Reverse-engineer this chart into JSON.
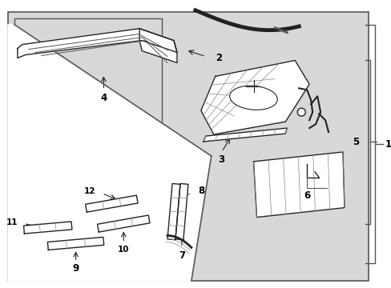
{
  "bg_color": "#d8d8d8",
  "white": "#ffffff",
  "dark": "#222222",
  "mid": "#555555",
  "light": "#888888"
}
